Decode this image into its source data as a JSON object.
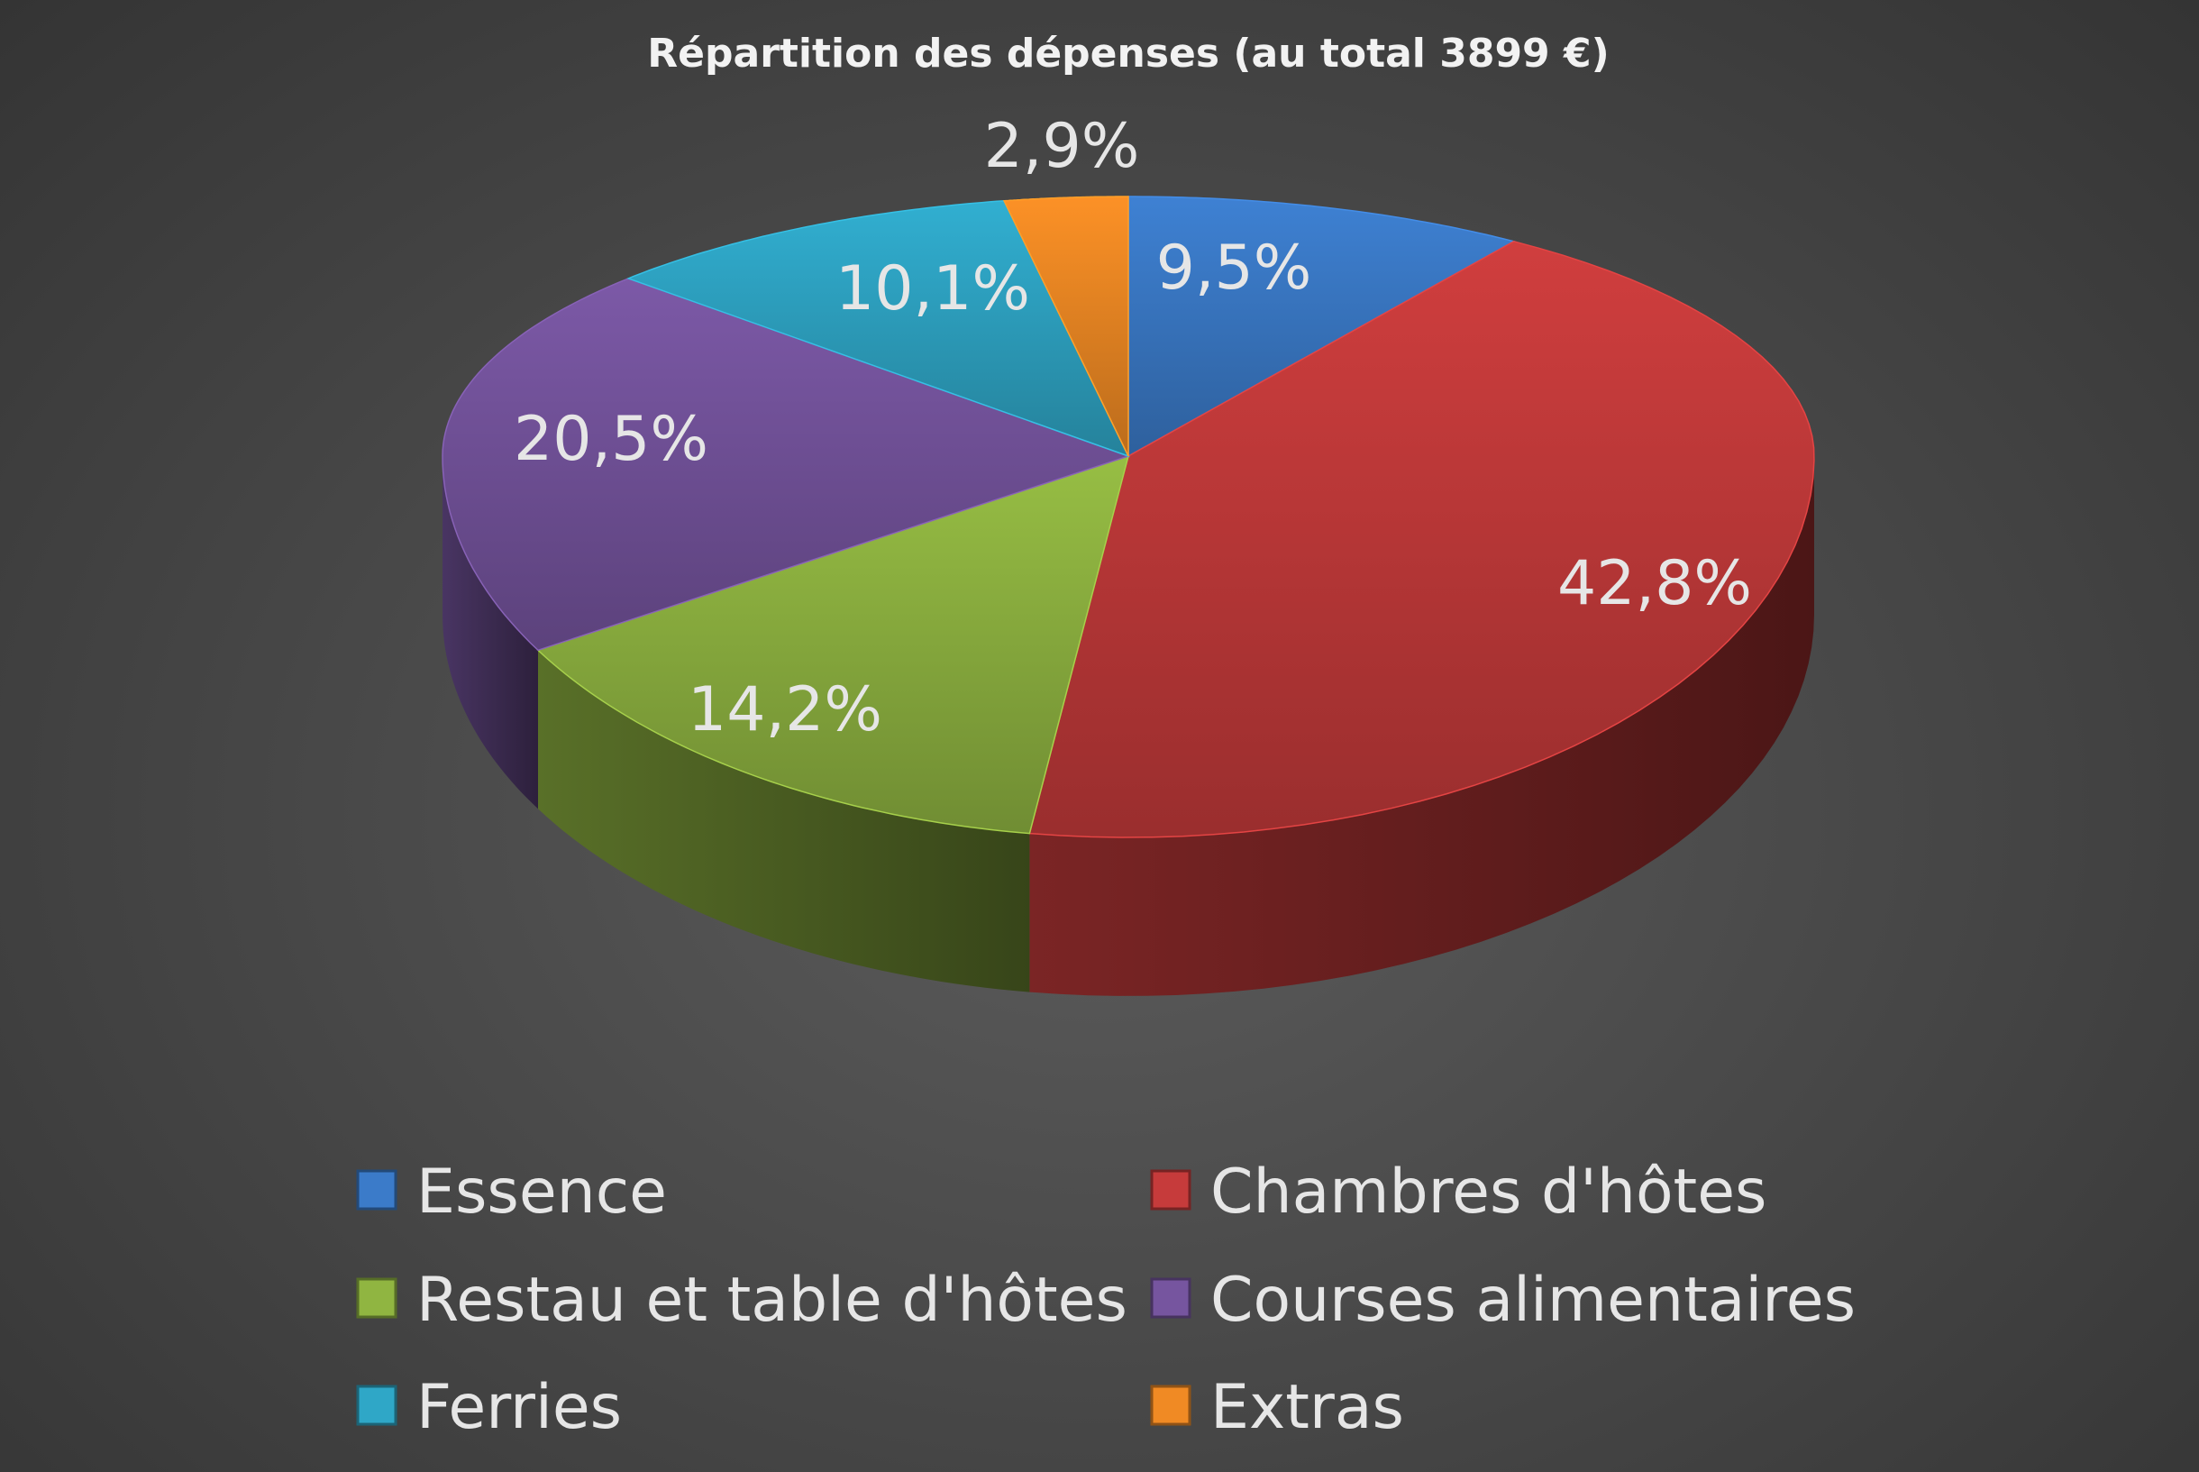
{
  "chart_data": {
    "type": "pie",
    "style": "3d",
    "title": "Répartition des dépenses (au total 3899 €)",
    "categories": [
      "Essence",
      "Chambres d'hôtes",
      "Restau et table d'hôtes",
      "Courses alimentaires",
      "Ferries",
      "Extras"
    ],
    "values": [
      9.5,
      42.8,
      14.2,
      20.5,
      10.1,
      2.9
    ],
    "labels": [
      "9,5%",
      "42,8%",
      "14,2%",
      "20,5%",
      "10,1%",
      "2,9%"
    ],
    "colors": [
      "#3b7bc9",
      "#c63b3b",
      "#90b541",
      "#76559f",
      "#2fa7c7",
      "#f08a24"
    ],
    "legend_position": "bottom"
  }
}
